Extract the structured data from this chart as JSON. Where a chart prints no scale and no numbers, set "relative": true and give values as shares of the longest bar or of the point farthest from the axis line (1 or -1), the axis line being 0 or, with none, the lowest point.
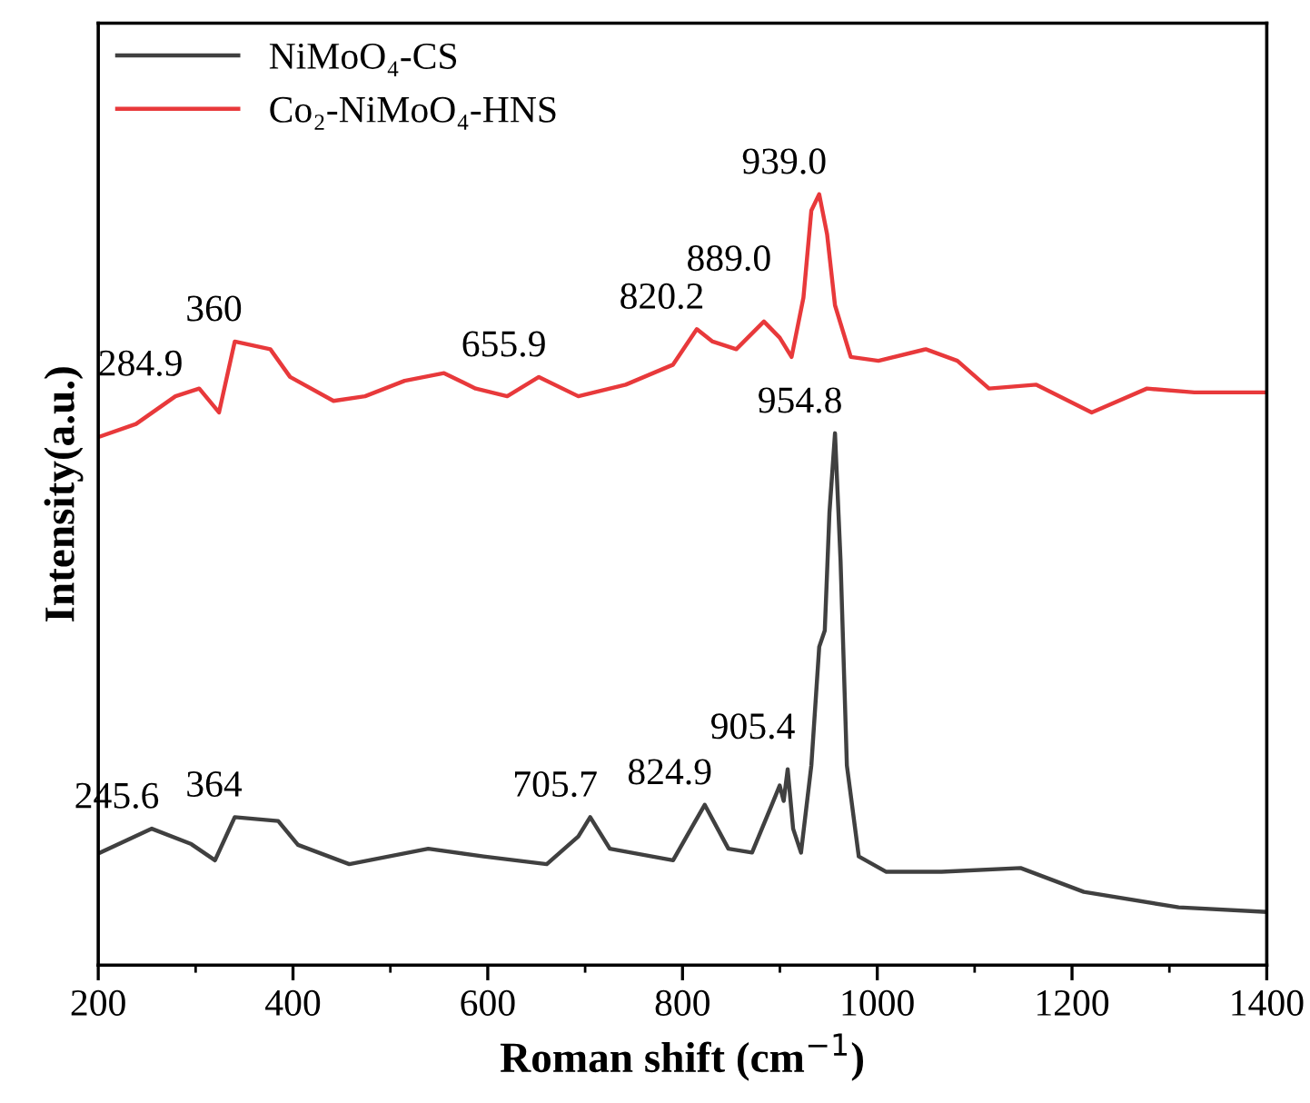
{
  "chart_data": {
    "type": "line",
    "relative": true,
    "xlabel": "Roman shift (cm$^{−1}$)",
    "ylabel": "Intensity(a.u.)",
    "xlim": [
      200,
      1400
    ],
    "xticks": [
      200,
      400,
      600,
      800,
      1000,
      1200,
      1400
    ],
    "tick_labels": "x",
    "legend": "top left",
    "grid": false,
    "marker": "none",
    "line_style": "solid",
    "series": [
      {
        "name": "NiMoO₄-CS",
        "color": "#404040",
        "x": [
          202.3,
          255,
          295.6,
          319.9,
          340.2,
          384.8,
          405.1,
          457.8,
          538.9,
          595.7,
          660.6,
          693,
          705.2,
          725.4,
          790.3,
          822.8,
          847.1,
          871.4,
          891.7,
          899.8,
          903.9,
          908,
          913.6,
          921.7,
          932.3,
          940.4,
          946.1,
          950.9,
          956.6,
          962.3,
          968.8,
          981,
          1009.3,
          1066.1,
          1147.2,
          1212.1,
          1309.5,
          1398.7
        ],
        "values": [
          0.146,
          0.177,
          0.157,
          0.136,
          0.192,
          0.187,
          0.156,
          0.131,
          0.151,
          0.141,
          0.131,
          0.167,
          0.192,
          0.151,
          0.136,
          0.208,
          0.151,
          0.146,
          0.208,
          0.233,
          0.213,
          0.254,
          0.177,
          0.146,
          0.259,
          0.413,
          0.434,
          0.587,
          0.69,
          0.525,
          0.259,
          0.141,
          0.121,
          0.121,
          0.126,
          0.095,
          0.075,
          0.069
        ]
      },
      {
        "name": "Co₂-NiMoO₄-HNS",
        "color": "#e8393b",
        "x": [
          202.3,
          238.8,
          279.3,
          303.7,
          324,
          340.2,
          376.7,
          397,
          441.6,
          474,
          514.6,
          555.1,
          587.6,
          620,
          652.5,
          693,
          741.7,
          790.3,
          814.7,
          830.9,
          855.2,
          883.6,
          899.8,
          912,
          924.2,
          932.3,
          940.4,
          948.5,
          956.6,
          972.8,
          1001.2,
          1049.9,
          1082.3,
          1114.8,
          1163.4,
          1220.2,
          1277,
          1325.6,
          1398.7
        ],
        "values": [
          0.686,
          0.702,
          0.738,
          0.748,
          0.717,
          0.809,
          0.799,
          0.763,
          0.732,
          0.738,
          0.758,
          0.768,
          0.748,
          0.738,
          0.763,
          0.738,
          0.753,
          0.779,
          0.825,
          0.809,
          0.799,
          0.835,
          0.814,
          0.789,
          0.866,
          0.979,
          1.0,
          0.948,
          0.856,
          0.789,
          0.784,
          0.799,
          0.784,
          0.748,
          0.753,
          0.717,
          0.748,
          0.743,
          0.743
        ]
      }
    ],
    "annotations": [
      {
        "text": "284.9",
        "x": 279.3,
        "y": 0.738
      },
      {
        "text": "360",
        "x": 340.2,
        "y": 0.809
      },
      {
        "text": "655.9",
        "x": 652.5,
        "y": 0.763
      },
      {
        "text": "820.2",
        "x": 814.7,
        "y": 0.825
      },
      {
        "text": "889.0",
        "x": 883.6,
        "y": 0.835
      },
      {
        "text": "939.0",
        "x": 940.4,
        "y": 1.0
      },
      {
        "text": "954.8",
        "x": 956.6,
        "y": 0.69
      },
      {
        "text": "245.6",
        "x": 255,
        "y": 0.177
      },
      {
        "text": "364",
        "x": 340.2,
        "y": 0.192
      },
      {
        "text": "705.7",
        "x": 705.2,
        "y": 0.192
      },
      {
        "text": "824.9",
        "x": 822.8,
        "y": 0.208
      },
      {
        "text": "905.4",
        "x": 908,
        "y": 0.254
      }
    ]
  }
}
